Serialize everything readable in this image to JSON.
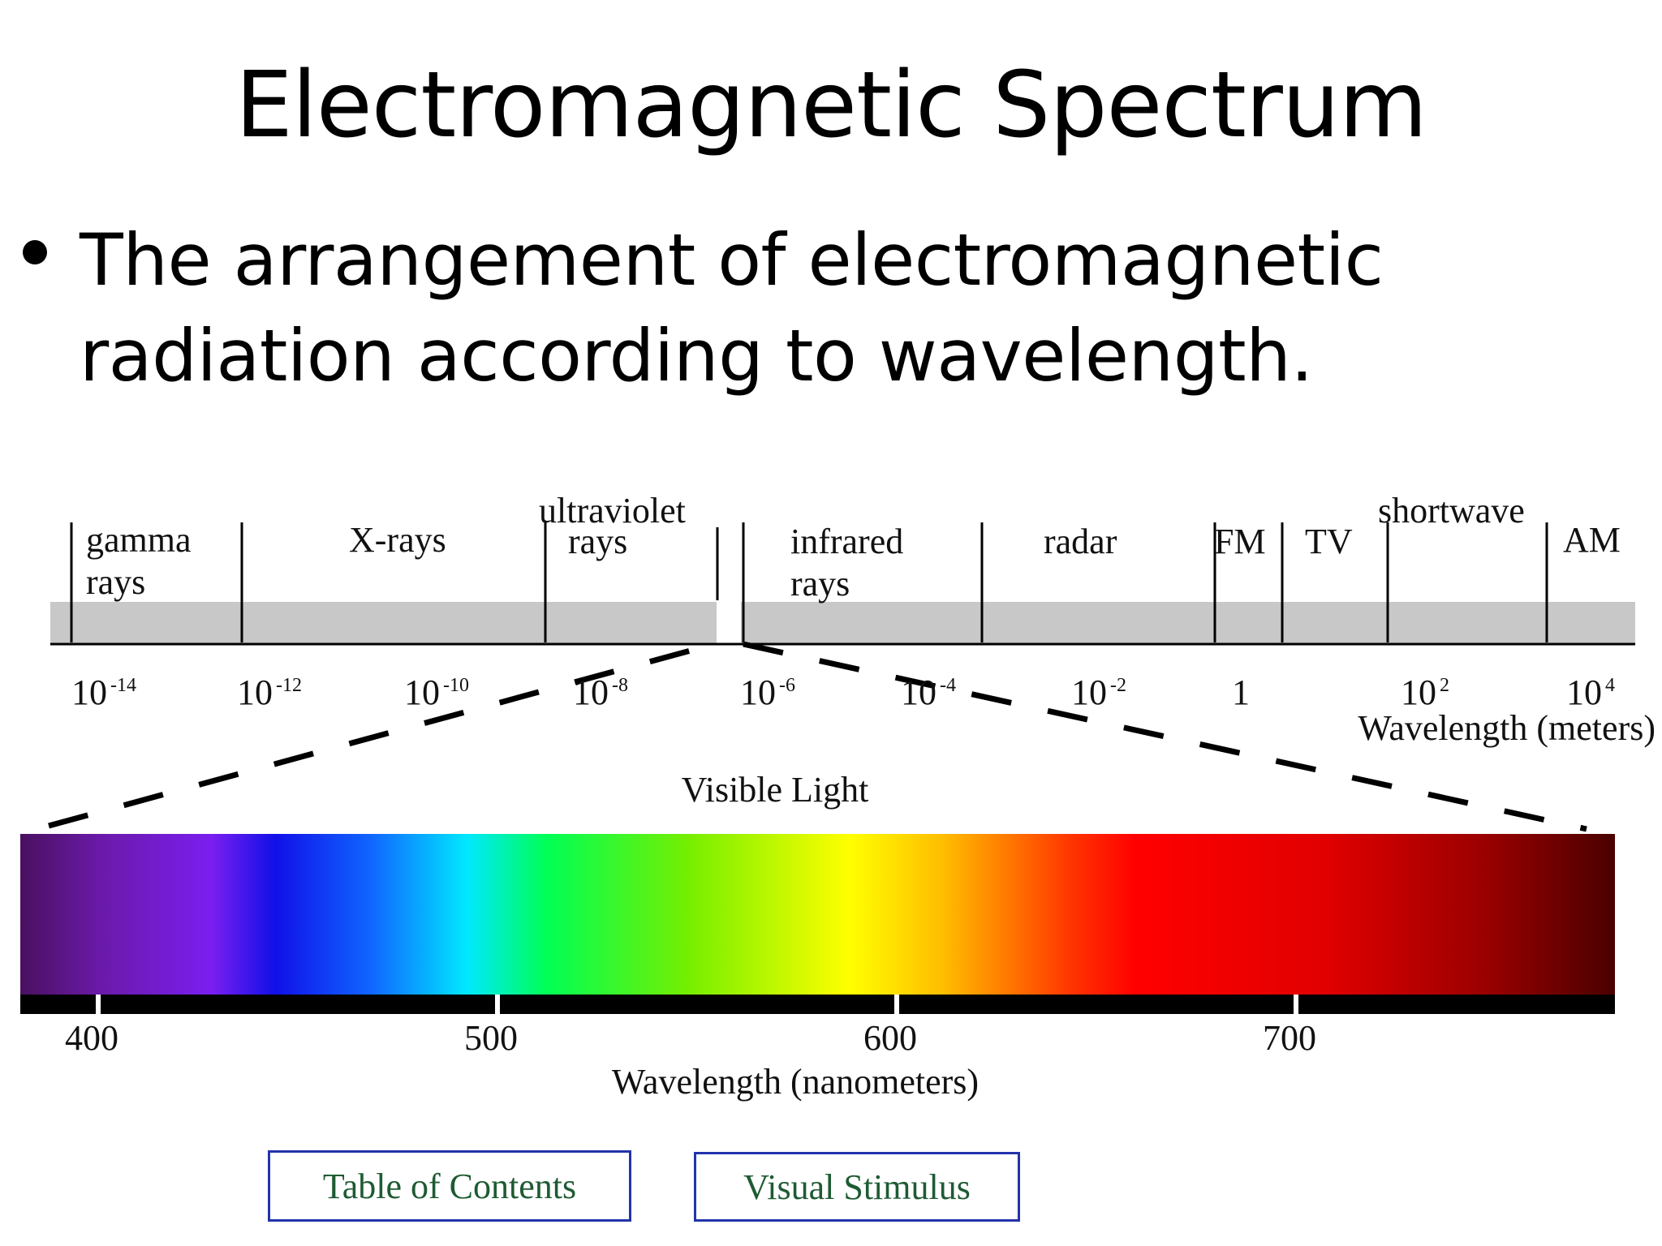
{
  "slide": {
    "title": "Electromagnetic Spectrum",
    "bullet": "The arrangement of electromagnetic radiation according to wavelength."
  },
  "em_spectrum": {
    "regions": [
      "gamma rays",
      "X-rays",
      "ultraviolet rays",
      "infrared rays",
      "radar",
      "FM",
      "TV",
      "shortwave",
      "AM"
    ],
    "ticks": [
      {
        "base": "10",
        "exp": "-14"
      },
      {
        "base": "10",
        "exp": "-12"
      },
      {
        "base": "10",
        "exp": "-10"
      },
      {
        "base": "10",
        "exp": "-8"
      },
      {
        "base": "10",
        "exp": "-6"
      },
      {
        "base": "10",
        "exp": "-4"
      },
      {
        "base": "10",
        "exp": "-2"
      },
      {
        "base": "1",
        "exp": ""
      },
      {
        "base": "10",
        "exp": "2"
      },
      {
        "base": "10",
        "exp": "4"
      }
    ],
    "axis_label": "Wavelength (meters)"
  },
  "visible": {
    "title": "Visible Light",
    "ticks": [
      "400",
      "500",
      "600",
      "700"
    ],
    "axis_label": "Wavelength (nanometers)"
  },
  "buttons": {
    "toc": "Table of Contents",
    "stimulus": "Visual Stimulus"
  },
  "colors": {
    "band": "#c8c8c8",
    "button_border": "#2233aa",
    "button_text": "#1e5b33"
  }
}
